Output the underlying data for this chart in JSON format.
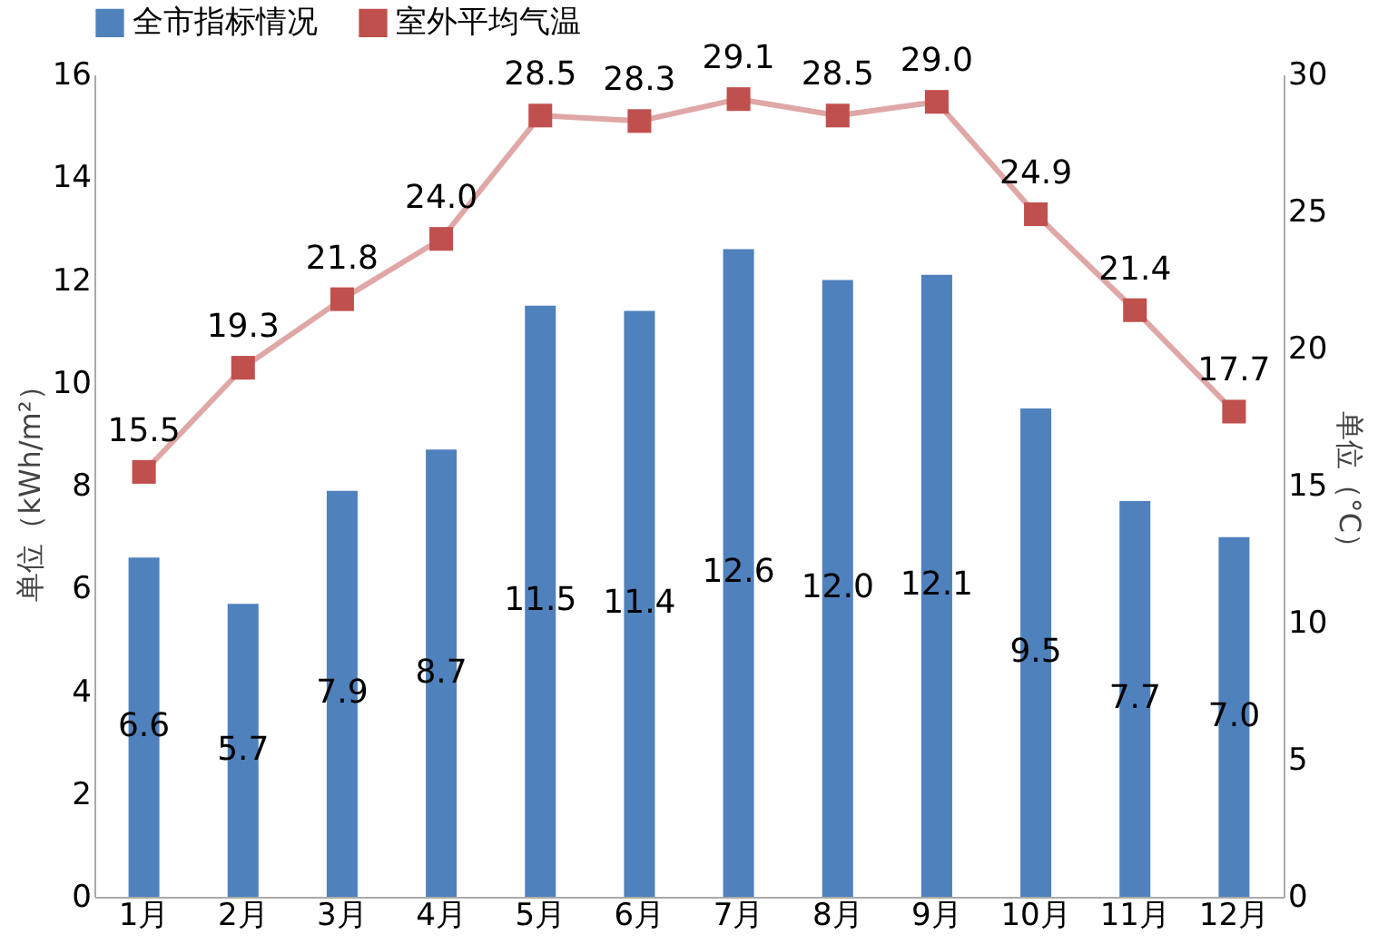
{
  "chart_data": {
    "type": "bar",
    "ylabel": "单位（kWh/m²）",
    "y2label": "单位（°C）",
    "categories": [
      "1月",
      "2月",
      "3月",
      "4月",
      "5月",
      "6月",
      "7月",
      "8月",
      "9月",
      "10月",
      "11月",
      "12月"
    ],
    "series": [
      {
        "name": "全市指标情况",
        "color": "#4f81bd",
        "values": [
          6.6,
          5.7,
          7.9,
          8.7,
          11.5,
          11.4,
          12.6,
          12.0,
          12.1,
          9.5,
          7.7,
          7.0
        ],
        "value_labels": [
          "6.6",
          "5.7",
          "7.9",
          "8.7",
          "11.5",
          "11.4",
          "12.6",
          "12.0",
          "12.1",
          "9.5",
          "7.7",
          "7.0"
        ]
      },
      {
        "name": "室外平均气温",
        "type": "line",
        "axis": "y2",
        "color": "#c0504d",
        "marker": "square",
        "line_style": "solid",
        "values": [
          15.5,
          19.3,
          21.8,
          24.0,
          28.5,
          28.3,
          29.1,
          28.5,
          29.0,
          24.9,
          21.4,
          17.7
        ],
        "value_labels": [
          "15.5",
          "19.3",
          "21.8",
          "24.0",
          "28.5",
          "28.3",
          "29.1",
          "28.5",
          "29.0",
          "24.9",
          "21.4",
          "17.7"
        ]
      }
    ],
    "ylim": [
      0,
      16
    ],
    "yticks": [
      0,
      2,
      4,
      6,
      8,
      10,
      12,
      14,
      16
    ],
    "y2lim": [
      0,
      30
    ],
    "y2ticks": [
      0,
      5,
      10,
      15,
      20,
      25,
      30
    ],
    "legend": "top",
    "grid": false
  }
}
